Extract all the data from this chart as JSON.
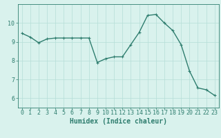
{
  "x": [
    0,
    1,
    2,
    3,
    4,
    5,
    6,
    7,
    8,
    9,
    10,
    11,
    12,
    13,
    14,
    15,
    16,
    17,
    18,
    19,
    20,
    21,
    22,
    23
  ],
  "y": [
    9.45,
    9.25,
    8.95,
    9.15,
    9.2,
    9.2,
    9.2,
    9.2,
    9.2,
    7.9,
    8.1,
    8.2,
    8.2,
    8.85,
    9.5,
    10.4,
    10.45,
    10.0,
    9.6,
    8.85,
    7.45,
    6.55,
    6.45,
    6.15
  ],
  "line_color": "#2e7d6e",
  "marker": "+",
  "marker_size": 3,
  "bg_color": "#d9f2ed",
  "grid_color": "#b5ddd7",
  "xlabel": "Humidex (Indice chaleur)",
  "xlim": [
    -0.5,
    23.5
  ],
  "ylim": [
    5.5,
    11.0
  ],
  "yticks": [
    6,
    7,
    8,
    9,
    10
  ],
  "xticks": [
    0,
    1,
    2,
    3,
    4,
    5,
    6,
    7,
    8,
    9,
    10,
    11,
    12,
    13,
    14,
    15,
    16,
    17,
    18,
    19,
    20,
    21,
    22,
    23
  ],
  "axis_color": "#2e7d6e",
  "tick_color": "#2e7d6e",
  "label_color": "#2e7d6e",
  "font_size_xlabel": 7,
  "font_size_ticks": 6,
  "line_width": 1.0
}
